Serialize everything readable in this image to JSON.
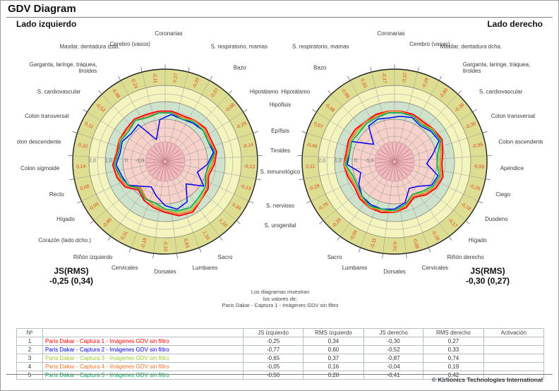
{
  "title": "GDV Diagram",
  "headings": {
    "left": "Lado izquierdo",
    "right": "Lado derecho"
  },
  "left_summary": {
    "label": "JS(RMS)",
    "value": "-0,25 (0,34)"
  },
  "right_summary": {
    "label": "JS(RMS)",
    "value": "-0,30 (0,27)"
  },
  "caption": {
    "line1": "Los diagramas muestran",
    "line2": "los valores de:",
    "line3": "Paris Dakar - Captura 1 - Imágenes GDV sin filtro"
  },
  "middle_labels": [
    "Hipófisis",
    "Epífisis",
    "Tiroides",
    "S. inmunológico",
    "S. nervioso",
    "S. urogenital"
  ],
  "radial_ticks": [
    "2,0",
    "1,0",
    "0",
    "-1,0"
  ],
  "palette": {
    "band_outer": "#dede92",
    "band_yellow": "#f4f4be",
    "band_green": "#cfe2cc",
    "band_pink": "#f7d2cb",
    "center_circle": "#efbbbe",
    "center_hatch": "#c8848e",
    "grid": "#999999",
    "ring_value_text": "#e0421b",
    "sector_label_text": "#3a3a3a",
    "series": [
      "#ff0000",
      "#0000ee",
      "#9acd32",
      "#f4742b",
      "#00a550"
    ]
  },
  "chart_data": [
    {
      "type": "radar",
      "side": "left",
      "title": "Lado izquierdo",
      "axis_range": [
        -1.0,
        2.0
      ],
      "sectors": [
        {
          "label": "Coronarias",
          "value": "0,27"
        },
        {
          "label": "S. respiratorio, mamas",
          "value": "-0,20"
        },
        {
          "label": "Bazo",
          "value": "-0,07"
        },
        {
          "label": "Hipotálamo",
          "value": "-0,08"
        },
        {
          "label": "Hipófisis",
          "value": "-0,29",
          "shared": true
        },
        {
          "label": "Epífisis",
          "value": "-0,14",
          "shared": true
        },
        {
          "label": "Tiroides",
          "value": "-0,13",
          "shared": true
        },
        {
          "label": "S. inmunológico",
          "value": "-0,13",
          "shared": true
        },
        {
          "label": "S. nervioso",
          "value": "0,39",
          "shared": true
        },
        {
          "label": "S. urogenital",
          "value": "1,10",
          "shared": true
        },
        {
          "label": "Sacro",
          "value": "1,16"
        },
        {
          "label": "Lumbares",
          "value": "0,63"
        },
        {
          "label": "Dorsales",
          "value": "-0,33"
        },
        {
          "label": "Cervicales",
          "value": "-0,18"
        },
        {
          "label": "Riñón izquierdo",
          "value": "0,11"
        },
        {
          "label": "Corazón (lado dcho.)",
          "value": "-0,80"
        },
        {
          "label": "Hígado",
          "value": "-0,09"
        },
        {
          "label": "Recto",
          "value": "0,00"
        },
        {
          "label": "Colon sigmoide",
          "value": "0,14"
        },
        {
          "label": "Colon descendente",
          "value": "-0,22"
        },
        {
          "label": "Colon transversal",
          "value": "0,11"
        },
        {
          "label": "S. cardiovascular",
          "value": "-0,52"
        },
        {
          "label": "Garganta, laringe, tráquea, tiroides",
          "lines": [
            "Garganta, laringe, tráquea,",
            "tiroides"
          ],
          "value": "-0,48"
        },
        {
          "label": "Maxilar, dentadura izda.",
          "value": "-0,24"
        },
        {
          "label": "Cerebro (vasos)",
          "value": "-0,11"
        }
      ],
      "series": [
        {
          "name": "Paris Dakar - Captura 1 - Imágenes GDV sin filtro",
          "values": [
            0.5,
            0.4,
            0.5,
            0.6,
            0.5,
            0.6,
            0.4,
            0.2,
            0.5,
            0.6,
            0.9,
            0.8,
            0.5,
            0.3,
            0.1,
            -0.2,
            0.3,
            0.5,
            0.6,
            0.4,
            0.5,
            0.5,
            0.6,
            0.5,
            0.5
          ]
        },
        {
          "name": "Paris Dakar - Captura 2 - Imágenes GDV sin filtro",
          "values": [
            0.3,
            0.2,
            0.3,
            0.4,
            0.3,
            0.4,
            0.0,
            -0.5,
            0.2,
            -0.7,
            0.2,
            0.4,
            0.1,
            -0.4,
            -0.8,
            -0.5,
            0.1,
            0.2,
            0.4,
            0.2,
            0.3,
            0.1,
            0.2,
            -1.1,
            0.0
          ]
        },
        {
          "name": "Paris Dakar - Captura 3 - Imágenes GDV sin filtro",
          "values": [
            0.4,
            0.3,
            0.4,
            0.4,
            0.4,
            0.5,
            0.2,
            0.1,
            0.3,
            0.5,
            0.7,
            0.6,
            0.4,
            0.1,
            0.0,
            -0.4,
            0.2,
            0.4,
            0.5,
            0.3,
            0.4,
            0.4,
            0.5,
            0.3,
            0.4
          ]
        },
        {
          "name": "Paris Dakar - Captura 4 - Imágenes GDV sin filtro",
          "values": [
            0.4,
            0.3,
            0.5,
            0.5,
            0.4,
            0.5,
            0.3,
            0.1,
            0.4,
            0.6,
            0.8,
            0.7,
            0.4,
            0.2,
            -0.1,
            -0.4,
            0.2,
            0.4,
            0.5,
            0.3,
            0.5,
            0.4,
            0.5,
            0.4,
            0.4
          ]
        },
        {
          "name": "Paris Dakar - Captura 5 - Imágenes GDV sin filtro",
          "values": [
            0.4,
            0.2,
            0.4,
            0.4,
            0.3,
            0.5,
            0.1,
            0.0,
            0.3,
            0.4,
            0.6,
            0.5,
            0.3,
            0.0,
            0.0,
            -0.3,
            0.1,
            0.3,
            0.5,
            0.3,
            0.4,
            0.3,
            0.5,
            0.3,
            0.4
          ]
        }
      ]
    },
    {
      "type": "radar",
      "side": "right",
      "title": "Lado derecho",
      "axis_range": [
        -1.0,
        2.0
      ],
      "sectors": [
        {
          "label": "Cerebro (vasos)",
          "value": "-0,37"
        },
        {
          "label": "Maxilar, dentadura dcha.",
          "value": "-0,29"
        },
        {
          "label": "Garganta, laringe, tráquea, tiroides",
          "lines": [
            "Garganta, laringe, tráquea,",
            "tiroides"
          ],
          "value": "-0,80"
        },
        {
          "label": "S. cardiovascular",
          "value": "-0,36"
        },
        {
          "label": "Colon transversal",
          "value": "-0,30"
        },
        {
          "label": "Colon ascendente",
          "value": "-0,95"
        },
        {
          "label": "Apéndice",
          "value": "-0,59"
        },
        {
          "label": "Ciego",
          "value": "-0,20"
        },
        {
          "label": "Duodeno",
          "value": "-0,18"
        },
        {
          "label": "Hígado",
          "value": "-0,17"
        },
        {
          "label": "Riñón derecho",
          "value": "-0,28"
        },
        {
          "label": "Cervicales",
          "value": "-0,08"
        },
        {
          "label": "Dorsales",
          "value": "-0,01"
        },
        {
          "label": "Lumbares",
          "value": "-0,11"
        },
        {
          "label": "Sacro",
          "value": "-0,04"
        },
        {
          "label": "S. urogenital",
          "value": "-0,28",
          "shared": true
        },
        {
          "label": "S. nervioso",
          "value": "-0,78",
          "shared": true
        },
        {
          "label": "S. inmunológico",
          "value": "-0,29",
          "shared": true
        },
        {
          "label": "Tiroides",
          "value": "0,11",
          "shared": true
        },
        {
          "label": "Epífisis",
          "value": "-0,40",
          "shared": true
        },
        {
          "label": "Hipófisis",
          "value": "0,07",
          "shared": true
        },
        {
          "label": "Hipotálamo",
          "value": "-0,48"
        },
        {
          "label": "Bazo",
          "value": "-0,69"
        },
        {
          "label": "S. respiratorio, mamas",
          "value": "0,10"
        },
        {
          "label": "Coronarias",
          "value": "-0,17"
        }
      ],
      "series": [
        {
          "name": "Paris Dakar - Captura 1 - Imágenes GDV sin filtro",
          "values": [
            0.5,
            0.5,
            0.4,
            0.5,
            0.6,
            0.4,
            0.3,
            0.5,
            0.4,
            0.2,
            -0.1,
            0.3,
            0.5,
            0.6,
            0.6,
            0.5,
            0.3,
            0.4,
            0.5,
            0.4,
            0.5,
            0.5,
            0.4,
            0.5,
            0.5
          ]
        },
        {
          "name": "Paris Dakar - Captura 2 - Imágenes GDV sin filtro",
          "values": [
            0.2,
            0.3,
            0.1,
            0.3,
            0.4,
            -0.2,
            -0.6,
            0.2,
            0.1,
            -0.5,
            -0.7,
            0.0,
            0.3,
            0.4,
            0.4,
            0.3,
            0.0,
            -0.4,
            0.3,
            0.2,
            0.3,
            -0.9,
            0.1,
            0.2,
            0.1
          ]
        },
        {
          "name": "Paris Dakar - Captura 3 - Imágenes GDV sin filtro",
          "values": [
            0.4,
            0.4,
            0.3,
            0.4,
            0.5,
            0.2,
            0.1,
            0.4,
            0.3,
            0.0,
            -0.3,
            0.2,
            0.4,
            0.5,
            0.5,
            0.4,
            0.2,
            0.2,
            0.4,
            0.3,
            0.4,
            0.3,
            0.3,
            0.4,
            0.4
          ]
        },
        {
          "name": "Paris Dakar - Captura 4 - Imágenes GDV sin filtro",
          "values": [
            0.5,
            0.4,
            0.3,
            0.5,
            0.5,
            0.3,
            0.2,
            0.4,
            0.3,
            0.1,
            -0.2,
            0.2,
            0.5,
            0.5,
            0.6,
            0.4,
            0.2,
            0.3,
            0.5,
            0.3,
            0.4,
            0.4,
            0.4,
            0.4,
            0.5
          ]
        },
        {
          "name": "Paris Dakar - Captura 5 - Imágenes GDV sin filtro",
          "values": [
            0.4,
            0.4,
            0.2,
            0.4,
            0.5,
            0.1,
            0.0,
            0.3,
            0.2,
            -0.1,
            -0.3,
            0.1,
            0.4,
            0.4,
            0.5,
            0.3,
            0.1,
            0.1,
            0.4,
            0.2,
            0.3,
            0.2,
            0.3,
            0.3,
            0.4
          ]
        }
      ]
    }
  ],
  "table": {
    "headers": [
      "Nº",
      "",
      "JS izquierdo",
      "RMS izquierdo",
      "JS derecho",
      "RMS derecho",
      "Activación"
    ],
    "rows": [
      {
        "n": "1",
        "name": "Paris Dakar - Captura 1 - Imágenes GDV sin filtro",
        "color": "#ff0000",
        "js_izq": "-0,25",
        "rms_izq": "0,34",
        "js_der": "-0,30",
        "rms_der": "0,27",
        "activacion": ""
      },
      {
        "n": "2",
        "name": "Paris Dakar - Captura 2 - Imágenes GDV sin filtro",
        "color": "#0000ee",
        "js_izq": "-0,77",
        "rms_izq": "0,60",
        "js_der": "-0,52",
        "rms_der": "0,33",
        "activacion": ""
      },
      {
        "n": "3",
        "name": "Paris Dakar - Captura 3 - Imágenes GDV sin filtro",
        "color": "#9acd32",
        "js_izq": "-0,65",
        "rms_izq": "0,37",
        "js_der": "-0,87",
        "rms_der": "0,74",
        "activacion": ""
      },
      {
        "n": "4",
        "name": "Paris Dakar - Captura 4 - Imágenes GDV sin filtro",
        "color": "#f4742b",
        "js_izq": "-0,05",
        "rms_izq": "0,16",
        "js_der": "-0,04",
        "rms_der": "0,19",
        "activacion": ""
      },
      {
        "n": "5",
        "name": "Paris Dakar - Captura 5 - Imágenes GDV sin filtro",
        "color": "#00a550",
        "js_izq": "-0,50",
        "rms_izq": "0,28",
        "js_der": "-0,41",
        "rms_der": "0,42",
        "activacion": ""
      }
    ]
  },
  "footer": {
    "copyright": "© Kirlionics Technologies International"
  }
}
